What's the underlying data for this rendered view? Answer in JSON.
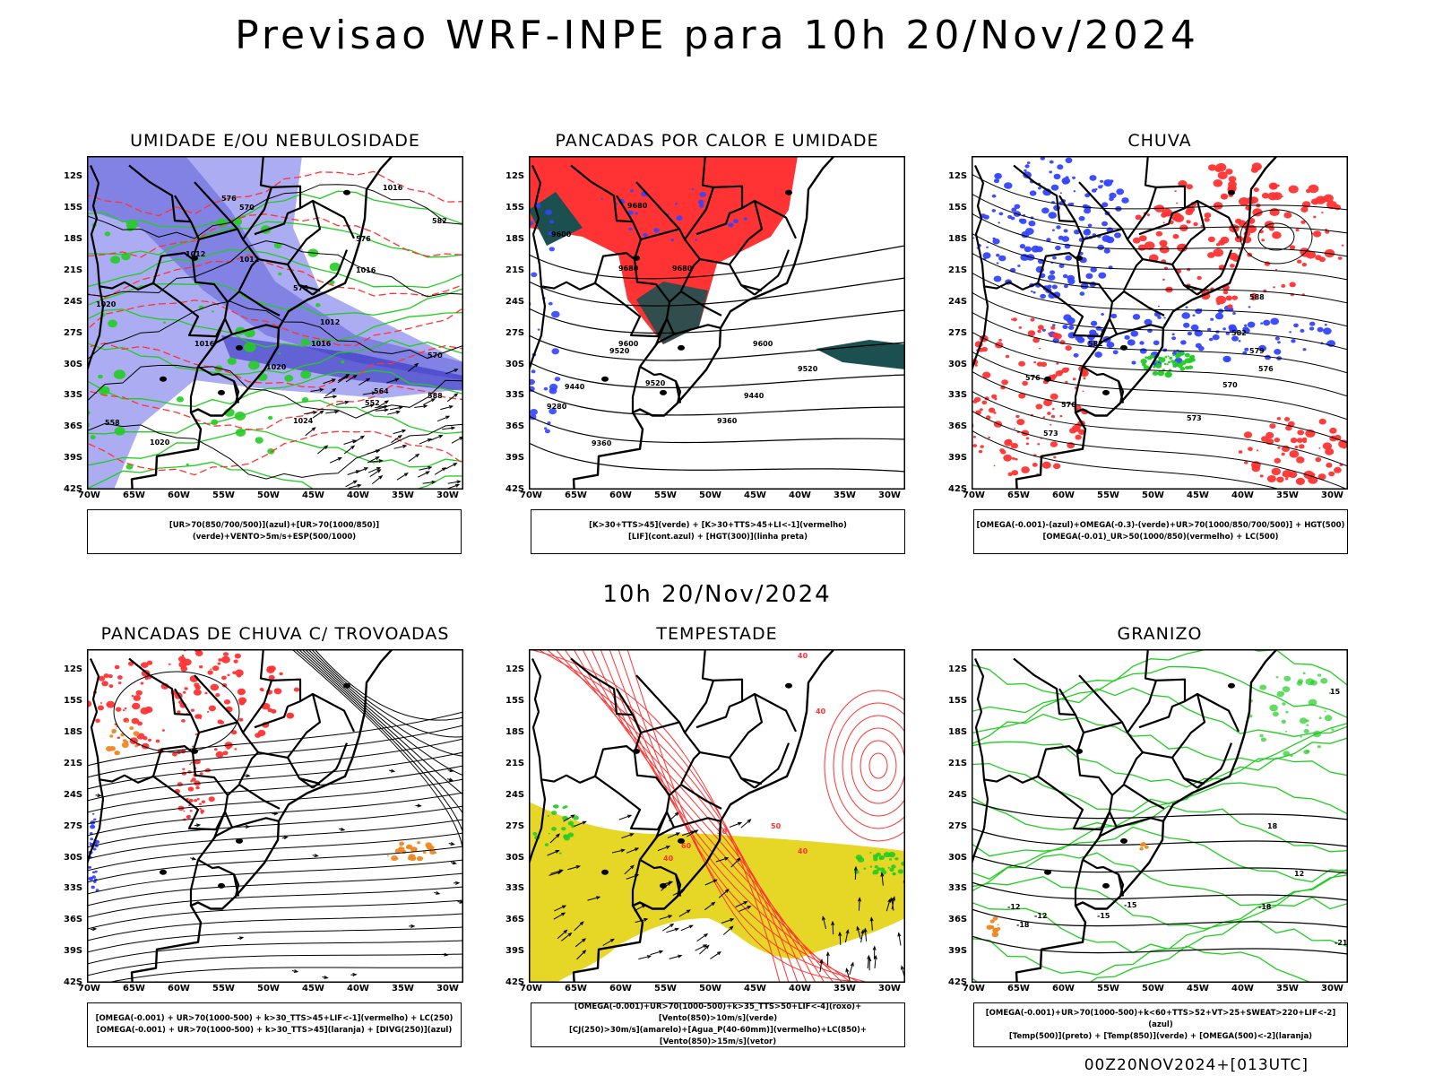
{
  "main_title": "Previsao WRF-INPE  para 10h 20/Nov/2024",
  "middle_title": "10h 20/Nov/2024",
  "footer": "00Z20NOV2024+[013UTC]",
  "lat_labels": [
    "12S",
    "15S",
    "18S",
    "21S",
    "24S",
    "27S",
    "30S",
    "33S",
    "36S",
    "39S",
    "42S"
  ],
  "lon_labels": [
    "70W",
    "65W",
    "60W",
    "55W",
    "50W",
    "45W",
    "40W",
    "35W",
    "30W"
  ],
  "colors": {
    "blue_light": "#9d9df0",
    "blue": "#3344ff",
    "green": "#22cc22",
    "red": "#ff3333",
    "orange": "#ee8822",
    "yellow": "#e6d625",
    "teal": "#1c5050"
  },
  "panels": [
    {
      "title": "UMIDADE E/OU NEBULOSIDADE",
      "legend": [
        "[UR>70(850/700/500)](azul)+[UR>70(1000/850)](verde)+VENTO>5m/s+ESP(500/1000)"
      ],
      "contour_labels": [
        "1016",
        "1012",
        "1012",
        "1012",
        "1016",
        "1016",
        "1020",
        "1020",
        "1024",
        "1020",
        "1016",
        "576",
        "570",
        "576",
        "570",
        "582",
        "588",
        "564",
        "552",
        "558",
        "576"
      ]
    },
    {
      "title": "PANCADAS POR CALOR E UMIDADE",
      "legend": [
        "[K>30+TTS>45](verde) + [K>30+TTS>45+LI<-1](vermelho)",
        "[LIF](cont.azul) + [HGT(300)](linha preta)"
      ],
      "contour_labels": [
        "9680",
        "9600",
        "9680",
        "9680",
        "9520",
        "9600",
        "9600",
        "9520",
        "9440",
        "9520",
        "9440",
        "9360",
        "9360",
        "9280"
      ]
    },
    {
      "title": "CHUVA",
      "legend": [
        "[OMEGA(-0.001)-(azul)+OMEGA(-0.3)-(verde)+UR>70(1000/850/700/500)] + HGT(500)",
        "[OMEGA(-0.01)_UR>50(1000/850)(vermelho) + LC(500)"
      ],
      "contour_labels": [
        "588",
        "582",
        "582",
        "579",
        "576",
        "576",
        "573",
        "570",
        "573",
        "576"
      ]
    },
    {
      "title": "PANCADAS DE CHUVA C/ TROVOADAS",
      "legend": [
        "[OMEGA(-0.001) + UR>70(1000-500) + k>30_TTS>45+LIF<-1](vermelho) + LC(250)",
        "[OMEGA(-0.001) + UR>70(1000-500) + k>30_TTS>45](laranja) + [DIVG(250)](azul)"
      ]
    },
    {
      "title": "TEMPESTADE",
      "legend": [
        "[OMEGA(-0.001)+UR>70(1000-500)+k>35_TTS>50+LIF<-4](roxo)+[Vento(850)>10m/s](verde)",
        "[CJ(250)>30m/s](amarelo)+[Agua_P(40-60mm)](vermelho)+LC(850)+[Vento(850)>15m/s](vetor)"
      ],
      "contour_labels": [
        "40",
        "40",
        "50",
        "60",
        "40",
        "30",
        "40"
      ]
    },
    {
      "title": "GRANIZO",
      "legend": [
        "[OMEGA(-0.001)+UR>70(1000-500)+k<60+TTS>52+VT>25+SWEAT>220+LIF<-2](azul)",
        "[Temp(500)](preto) + [Temp(850)](verde) + [OMEGA(500)<-2](laranja)"
      ],
      "contour_labels": [
        "-12",
        "-15",
        "-18",
        "-18",
        "-15",
        "-12",
        "-21",
        "12",
        "15",
        "18"
      ]
    }
  ]
}
